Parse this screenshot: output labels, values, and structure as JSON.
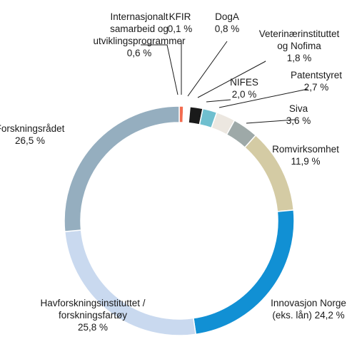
{
  "chart_data": {
    "type": "pie",
    "variant": "donut",
    "title": "",
    "unit": "%",
    "slices": [
      {
        "name": "Internasjonalt samarbeid og utviklingsprogrammer",
        "value": 0.6,
        "value_label": "0,6 %",
        "label_lines": [
          "Internasjonalt",
          "samarbeid og",
          "utviklingsprogrammer",
          "0,6 %"
        ],
        "color": "#f26b4f"
      },
      {
        "name": "KFIR",
        "value": 0.1,
        "value_label": "0,1 %",
        "label_lines": [
          "KFIR",
          "0,1 %"
        ],
        "color": "#c9c9c9"
      },
      {
        "name": "DogA",
        "value": 0.8,
        "value_label": "0,8 %",
        "label_lines": [
          "DogA",
          "0,8 %"
        ],
        "color": "#ffffff"
      },
      {
        "name": "Veterinærinstituttet og Nofima",
        "value": 1.8,
        "value_label": "1,8 %",
        "label_lines": [
          "Veterinærinstituttet",
          "og Nofima",
          "1,8 %"
        ],
        "color": "#1a1a1a"
      },
      {
        "name": "NIFES",
        "value": 2.0,
        "value_label": "2,0 %",
        "label_lines": [
          "NIFES",
          "2,0 %"
        ],
        "color": "#6fbfcf"
      },
      {
        "name": "Patentstyret",
        "value": 2.7,
        "value_label": "2,7 %",
        "label_lines": [
          "Patentstyret",
          "2,7 %"
        ],
        "color": "#ece7e0"
      },
      {
        "name": "Siva",
        "value": 3.6,
        "value_label": "3,6 %",
        "label_lines": [
          "Siva",
          "3,6 %"
        ],
        "color": "#9ea9a8"
      },
      {
        "name": "Romvirksomhet",
        "value": 11.9,
        "value_label": "11,9 %",
        "label_lines": [
          "Romvirksomhet",
          "11,9 %"
        ],
        "color": "#d4cba4"
      },
      {
        "name": "Innovasjon Norge (eks. lån)",
        "value": 24.2,
        "value_label": "24,2 %",
        "label_lines": [
          "Innovasjon Norge",
          "(eks. lån) 24,2 %"
        ],
        "color": "#1190d4"
      },
      {
        "name": "Havforskningsinstituttet / forskningsfartøy",
        "value": 25.8,
        "value_label": "25,8 %",
        "label_lines": [
          "Havforskningsinstituttet /",
          "forskningsfartøy",
          "25,8 %"
        ],
        "color": "#c9d9ef"
      },
      {
        "name": "Forskningsrådet",
        "value": 26.5,
        "value_label": "26,5 %",
        "label_lines": [
          "Forskningsrådet",
          "26,5 %"
        ],
        "color": "#95aebf"
      }
    ]
  }
}
